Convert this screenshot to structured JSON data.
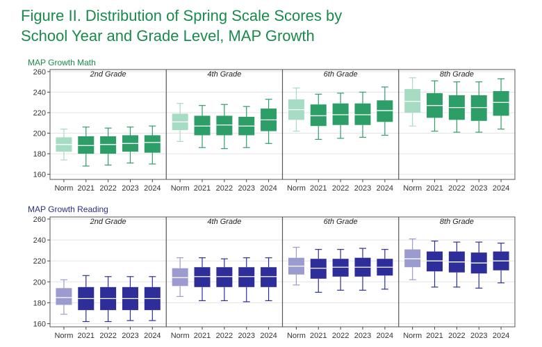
{
  "figure": {
    "title_line1": "Figure II. Distribution of Spring Scale Scores by",
    "title_line2": "School Year and Grade Level, MAP Growth"
  },
  "colors": {
    "math_dark": "#2e9e68",
    "math_light": "#a7dcc4",
    "reading_dark": "#2e2e9a",
    "reading_light": "#9b9bcf",
    "math_label": "#1a8a4c",
    "reading_label": "#2e2e8c"
  },
  "chart_data": [
    {
      "type": "boxplot",
      "subject": "MAP Growth Math",
      "ylim": [
        155,
        262
      ],
      "yticks": [
        160,
        180,
        200,
        220,
        240,
        260
      ],
      "categories": [
        "Norm",
        "2021",
        "2022",
        "2023",
        "2024"
      ],
      "grades": [
        {
          "name": "2nd Grade",
          "boxes": [
            {
              "min": 174,
              "q1": 182,
              "median": 189,
              "q3": 196,
              "max": 204
            },
            {
              "min": 168,
              "q1": 180,
              "median": 188,
              "q3": 197,
              "max": 206
            },
            {
              "min": 169,
              "q1": 180,
              "median": 189,
              "q3": 197,
              "max": 205
            },
            {
              "min": 171,
              "q1": 182,
              "median": 190,
              "q3": 198,
              "max": 206
            },
            {
              "min": 170,
              "q1": 181,
              "median": 191,
              "q3": 198,
              "max": 207
            }
          ]
        },
        {
          "name": "4th Grade",
          "boxes": [
            {
              "min": 192,
              "q1": 203,
              "median": 211,
              "q3": 219,
              "max": 229
            },
            {
              "min": 186,
              "q1": 198,
              "median": 207,
              "q3": 217,
              "max": 227
            },
            {
              "min": 185,
              "q1": 198,
              "median": 208,
              "q3": 217,
              "max": 228
            },
            {
              "min": 186,
              "q1": 198,
              "median": 207,
              "q3": 216,
              "max": 226
            },
            {
              "min": 190,
              "q1": 202,
              "median": 213,
              "q3": 224,
              "max": 233
            }
          ]
        },
        {
          "name": "6th Grade",
          "boxes": [
            {
              "min": 202,
              "q1": 213,
              "median": 223,
              "q3": 233,
              "max": 244
            },
            {
              "min": 194,
              "q1": 207,
              "median": 217,
              "q3": 228,
              "max": 238
            },
            {
              "min": 195,
              "q1": 208,
              "median": 218,
              "q3": 229,
              "max": 239
            },
            {
              "min": 196,
              "q1": 208,
              "median": 218,
              "q3": 229,
              "max": 240
            },
            {
              "min": 198,
              "q1": 211,
              "median": 222,
              "q3": 232,
              "max": 245
            }
          ]
        },
        {
          "name": "8th Grade",
          "boxes": [
            {
              "min": 207,
              "q1": 220,
              "median": 231,
              "q3": 243,
              "max": 254
            },
            {
              "min": 202,
              "q1": 215,
              "median": 227,
              "q3": 239,
              "max": 251
            },
            {
              "min": 201,
              "q1": 213,
              "median": 225,
              "q3": 237,
              "max": 250
            },
            {
              "min": 201,
              "q1": 212,
              "median": 225,
              "q3": 237,
              "max": 250
            },
            {
              "min": 204,
              "q1": 217,
              "median": 230,
              "q3": 241,
              "max": 253
            }
          ]
        }
      ]
    },
    {
      "type": "boxplot",
      "subject": "MAP Growth Reading",
      "ylim": [
        157,
        262
      ],
      "yticks": [
        160,
        180,
        200,
        220,
        240,
        260
      ],
      "categories": [
        "Norm",
        "2021",
        "2022",
        "2023",
        "2024"
      ],
      "grades": [
        {
          "name": "2nd Grade",
          "boxes": [
            {
              "min": 169,
              "q1": 178,
              "median": 185,
              "q3": 194,
              "max": 202
            },
            {
              "min": 162,
              "q1": 173,
              "median": 184,
              "q3": 195,
              "max": 206
            },
            {
              "min": 162,
              "q1": 173,
              "median": 184,
              "q3": 195,
              "max": 205
            },
            {
              "min": 163,
              "q1": 173,
              "median": 184,
              "q3": 195,
              "max": 205
            },
            {
              "min": 163,
              "q1": 173,
              "median": 184,
              "q3": 195,
              "max": 205
            }
          ]
        },
        {
          "name": "4th Grade",
          "boxes": [
            {
              "min": 186,
              "q1": 196,
              "median": 204,
              "q3": 213,
              "max": 223
            },
            {
              "min": 182,
              "q1": 195,
              "median": 205,
              "q3": 214,
              "max": 223
            },
            {
              "min": 182,
              "q1": 195,
              "median": 205,
              "q3": 214,
              "max": 222
            },
            {
              "min": 181,
              "q1": 195,
              "median": 205,
              "q3": 214,
              "max": 223
            },
            {
              "min": 182,
              "q1": 195,
              "median": 205,
              "q3": 214,
              "max": 223
            }
          ]
        },
        {
          "name": "6th Grade",
          "boxes": [
            {
              "min": 197,
              "q1": 207,
              "median": 215,
              "q3": 223,
              "max": 233
            },
            {
              "min": 190,
              "q1": 203,
              "median": 213,
              "q3": 222,
              "max": 231
            },
            {
              "min": 192,
              "q1": 205,
              "median": 214,
              "q3": 222,
              "max": 231
            },
            {
              "min": 192,
              "q1": 205,
              "median": 214,
              "q3": 223,
              "max": 232
            },
            {
              "min": 193,
              "q1": 206,
              "median": 214,
              "q3": 222,
              "max": 231
            }
          ]
        },
        {
          "name": "8th Grade",
          "boxes": [
            {
              "min": 202,
              "q1": 214,
              "median": 222,
              "q3": 231,
              "max": 241
            },
            {
              "min": 195,
              "q1": 210,
              "median": 220,
              "q3": 229,
              "max": 239
            },
            {
              "min": 195,
              "q1": 209,
              "median": 219,
              "q3": 229,
              "max": 238
            },
            {
              "min": 194,
              "q1": 208,
              "median": 218,
              "q3": 228,
              "max": 238
            },
            {
              "min": 199,
              "q1": 211,
              "median": 220,
              "q3": 229,
              "max": 237
            }
          ]
        }
      ]
    }
  ]
}
